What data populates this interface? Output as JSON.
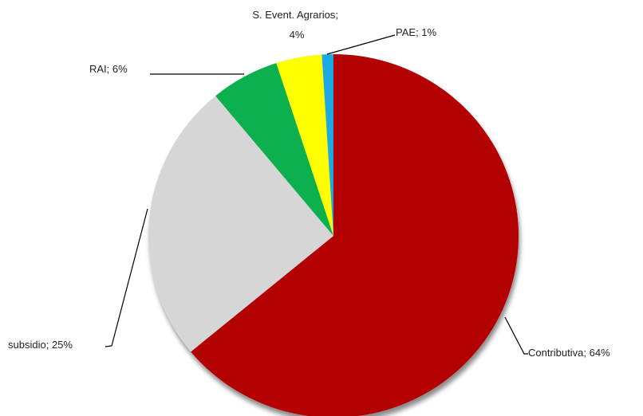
{
  "chart_data": {
    "type": "pie",
    "categories": [
      "Contributiva",
      "subsidio",
      "RAI",
      "S. Event. Agrarios",
      "PAE"
    ],
    "values": [
      64,
      25,
      6,
      4,
      1
    ],
    "value_labels": [
      "64%",
      "25%",
      "6%",
      "4%",
      "1%"
    ],
    "label_separator": "; ",
    "colors": [
      "#b30606",
      "#d6d6d6",
      "#0bb04f",
      "#ffff00",
      "#1aa9e4"
    ]
  }
}
